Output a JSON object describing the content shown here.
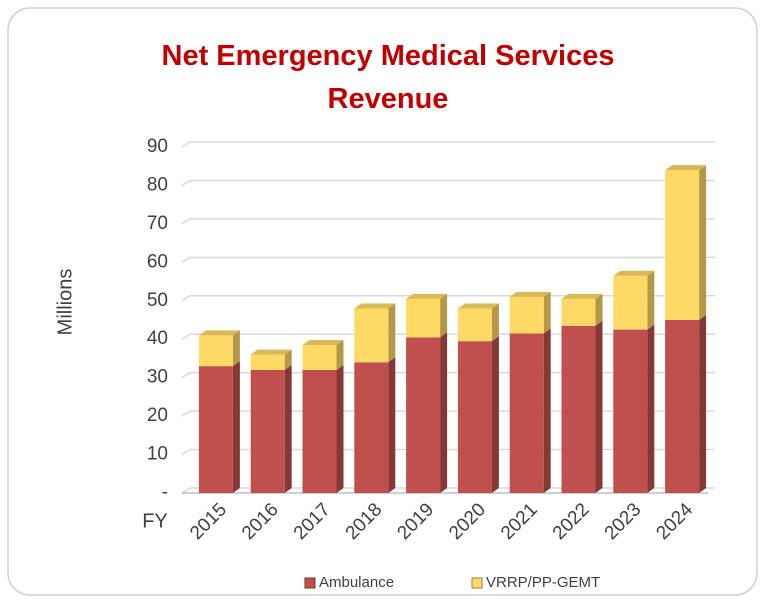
{
  "chart_data": {
    "type": "bar",
    "stacked": true,
    "title": "Net Emergency Medical Services Revenue",
    "y_label": "Millions",
    "x_label": "FY",
    "categories": [
      "2015",
      "2016",
      "2017",
      "2018",
      "2019",
      "2020",
      "2021",
      "2022",
      "2023",
      "2024"
    ],
    "series": [
      {
        "name": "Ambulance",
        "color": "#c0504d",
        "values": [
          33,
          32,
          32,
          34,
          40.5,
          39.5,
          41.5,
          43.5,
          42.5,
          45
        ]
      },
      {
        "name": "VRRP/PP-GEMT",
        "color": "#ffd966",
        "values": [
          8,
          4,
          6.5,
          14,
          10,
          8.5,
          9.5,
          7,
          14,
          39
        ]
      }
    ],
    "ylim": [
      0,
      90
    ],
    "yticks": [
      {
        "value": 0,
        "label": "-"
      },
      10,
      20,
      30,
      40,
      50,
      60,
      70,
      80,
      90
    ],
    "grid": true,
    "legend": "bottom"
  }
}
